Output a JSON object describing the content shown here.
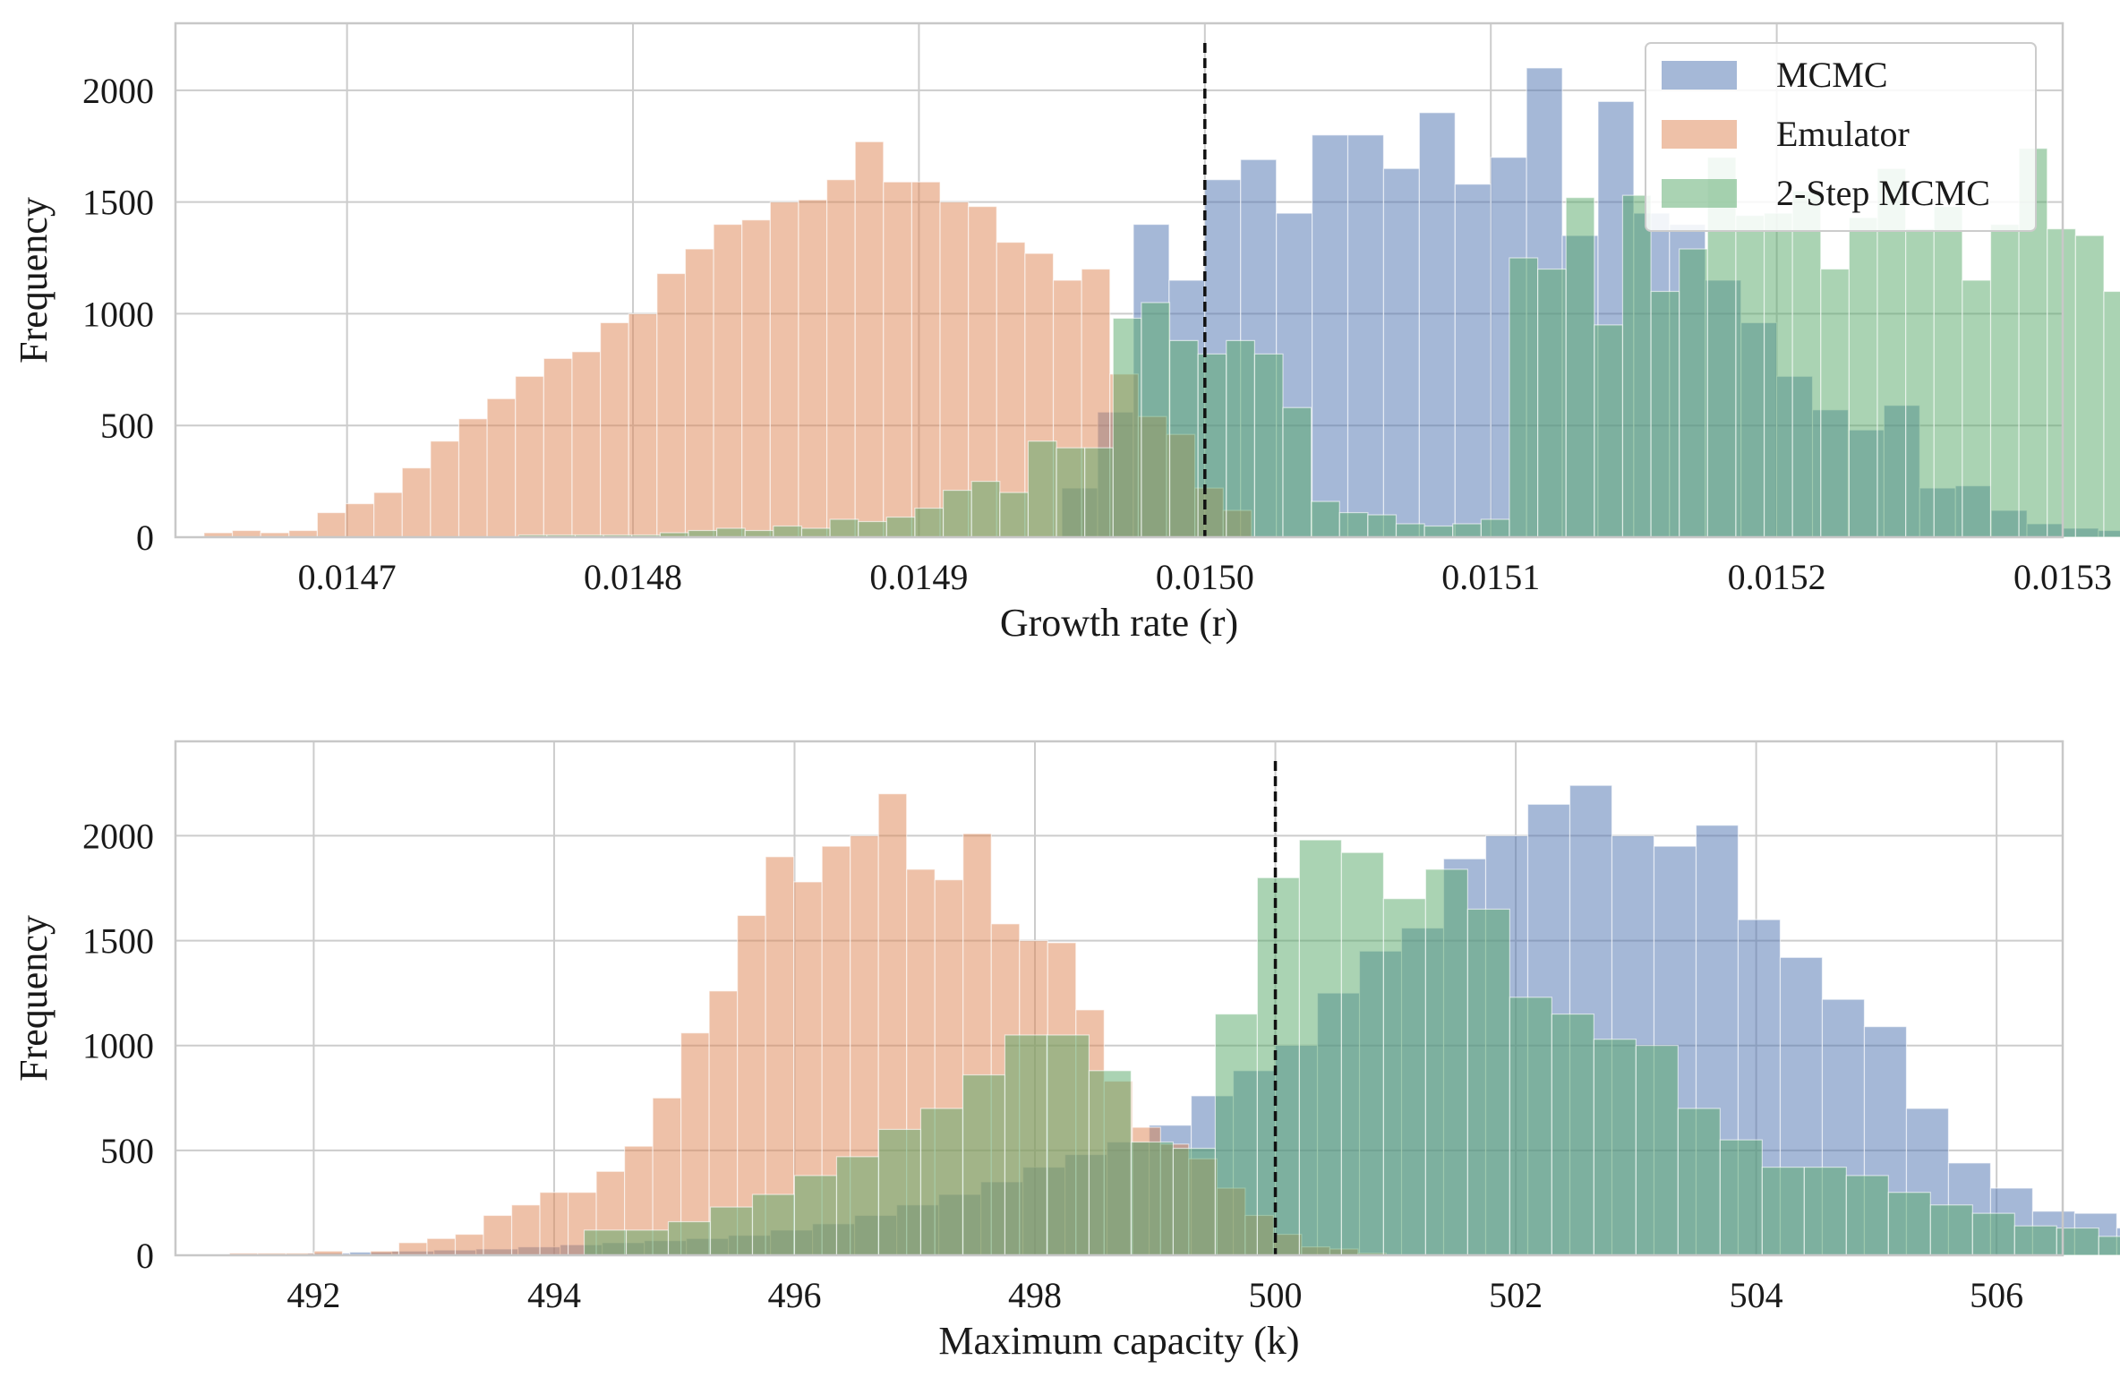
{
  "figure": {
    "background": "#ffffff",
    "panel_count": 2
  },
  "colors": {
    "mcmc": "#4c72b0",
    "emulator": "#dd8452",
    "two_step": "#55a868",
    "grid": "#cccccc",
    "axes_edge": "#c8c8c8",
    "true_value_line": "#111111"
  },
  "legend": {
    "placement": "top-right",
    "entries": [
      {
        "label": "MCMC",
        "color": "#4c72b0"
      },
      {
        "label": "Emulator",
        "color": "#dd8452"
      },
      {
        "label": "2-Step MCMC",
        "color": "#55a868"
      }
    ]
  },
  "chart_data": [
    {
      "type": "histogram",
      "title": "",
      "xlabel": "Growth rate (r)",
      "ylabel": "Frequency",
      "xlim": [
        0.01464,
        0.0153
      ],
      "ylim": [
        0,
        2300
      ],
      "xticks": [
        0.0147,
        0.0148,
        0.0149,
        0.015,
        0.0151,
        0.0152,
        0.0153
      ],
      "xtick_labels": [
        "0.0147",
        "0.0148",
        "0.0149",
        "0.0150",
        "0.0151",
        "0.0152",
        "0.0153"
      ],
      "yticks": [
        0,
        500,
        1000,
        1500,
        2000
      ],
      "ytick_labels": [
        "0",
        "500",
        "1000",
        "1500",
        "2000"
      ],
      "grid": true,
      "reference_line_x": 0.015,
      "series": [
        {
          "name": "MCMC",
          "color": "#4c72b0",
          "bin_start": 0.01495,
          "bin_width": 1.25e-05,
          "counts": [
            220,
            560,
            1400,
            1150,
            1600,
            1690,
            1450,
            1800,
            1800,
            1650,
            1900,
            1580,
            1700,
            2100,
            1350,
            1950,
            1450,
            1400,
            1150,
            960,
            720,
            570,
            480,
            590,
            220,
            230,
            120,
            60,
            40,
            30
          ]
        },
        {
          "name": "Emulator",
          "color": "#dd8452",
          "bin_start": 0.01465,
          "bin_width": 9.9e-06,
          "counts": [
            20,
            30,
            20,
            30,
            110,
            150,
            200,
            310,
            430,
            530,
            620,
            720,
            800,
            830,
            960,
            1000,
            1180,
            1290,
            1400,
            1420,
            1500,
            1510,
            1600,
            1770,
            1590,
            1590,
            1500,
            1480,
            1320,
            1270,
            1150,
            1200,
            730,
            540,
            460,
            220,
            120
          ]
        },
        {
          "name": "2-Step MCMC",
          "color": "#55a868",
          "bin_start": 0.01476,
          "bin_width": 9.9e-06,
          "counts": [
            10,
            10,
            10,
            10,
            10,
            20,
            30,
            40,
            30,
            50,
            40,
            80,
            70,
            90,
            130,
            210,
            250,
            200,
            430,
            400,
            400,
            980,
            1050,
            880,
            820,
            880,
            820,
            580,
            160,
            110,
            100,
            60,
            50,
            60,
            80,
            1250,
            1200,
            1520,
            950,
            1530,
            1100,
            1290,
            1700,
            1440,
            1450,
            1550,
            1200,
            1430,
            1650,
            1380,
            1480,
            1150,
            1400,
            1740,
            1380,
            1350,
            1100,
            900,
            1260,
            930,
            1170,
            1470,
            900,
            1320,
            1040,
            1110,
            1230,
            1200,
            1020,
            1130,
            1380,
            1120,
            1110,
            750,
            850,
            950,
            1040,
            1090,
            1520,
            1260,
            1210,
            1230,
            950,
            1200,
            1130,
            1400,
            880,
            980,
            760,
            890,
            1330,
            1340,
            870,
            1010,
            900,
            720,
            1150,
            780,
            620,
            670,
            740,
            580,
            420,
            520,
            640,
            470,
            430,
            210,
            200,
            170,
            60,
            30,
            10,
            10
          ]
        }
      ]
    },
    {
      "type": "histogram",
      "title": "",
      "xlabel": "Maximum capacity (k)",
      "ylabel": "Frequency",
      "xlim": [
        490.85,
        506.55
      ],
      "ylim": [
        0,
        2450
      ],
      "xticks": [
        492,
        494,
        496,
        498,
        500,
        502,
        504,
        506
      ],
      "xtick_labels": [
        "492",
        "494",
        "496",
        "498",
        "500",
        "502",
        "504",
        "506"
      ],
      "yticks": [
        0,
        500,
        1000,
        1500,
        2000
      ],
      "ytick_labels": [
        "0",
        "500",
        "1000",
        "1500",
        "2000"
      ],
      "grid": true,
      "reference_line_x": 500.0,
      "series": [
        {
          "name": "MCMC",
          "color": "#4c72b0",
          "bin_start": 491.6,
          "bin_width": 0.35,
          "counts": [
            5,
            10,
            15,
            20,
            25,
            30,
            40,
            50,
            60,
            70,
            80,
            95,
            120,
            150,
            190,
            240,
            290,
            350,
            420,
            480,
            540,
            620,
            760,
            880,
            1000,
            1250,
            1450,
            1560,
            1890,
            2000,
            2150,
            2240,
            2000,
            1950,
            2050,
            1600,
            1420,
            1220,
            1090,
            700,
            440,
            320,
            210,
            200,
            130,
            110,
            80,
            60,
            30,
            20,
            10
          ]
        },
        {
          "name": "Emulator",
          "color": "#dd8452",
          "bin_start": 491.3,
          "bin_width": 0.2347,
          "counts": [
            10,
            10,
            10,
            20,
            0,
            20,
            60,
            80,
            100,
            190,
            240,
            300,
            300,
            400,
            520,
            750,
            1060,
            1260,
            1620,
            1900,
            1780,
            1950,
            2000,
            2200,
            1840,
            1790,
            2010,
            1580,
            1500,
            1490,
            1170,
            830,
            610,
            530,
            460,
            320,
            190,
            100,
            40,
            30,
            10
          ]
        },
        {
          "name": "2-Step MCMC",
          "color": "#55a868",
          "bin_start": 494.25,
          "bin_width": 0.35,
          "counts": [
            120,
            120,
            160,
            230,
            290,
            380,
            470,
            600,
            700,
            860,
            1050,
            1050,
            880,
            540,
            510,
            1150,
            1800,
            1980,
            1920,
            1700,
            1840,
            1650,
            1230,
            1150,
            1030,
            1000,
            700,
            550,
            420,
            420,
            380,
            300,
            240,
            200,
            140,
            130,
            90,
            60,
            40,
            20,
            10
          ]
        }
      ]
    }
  ]
}
